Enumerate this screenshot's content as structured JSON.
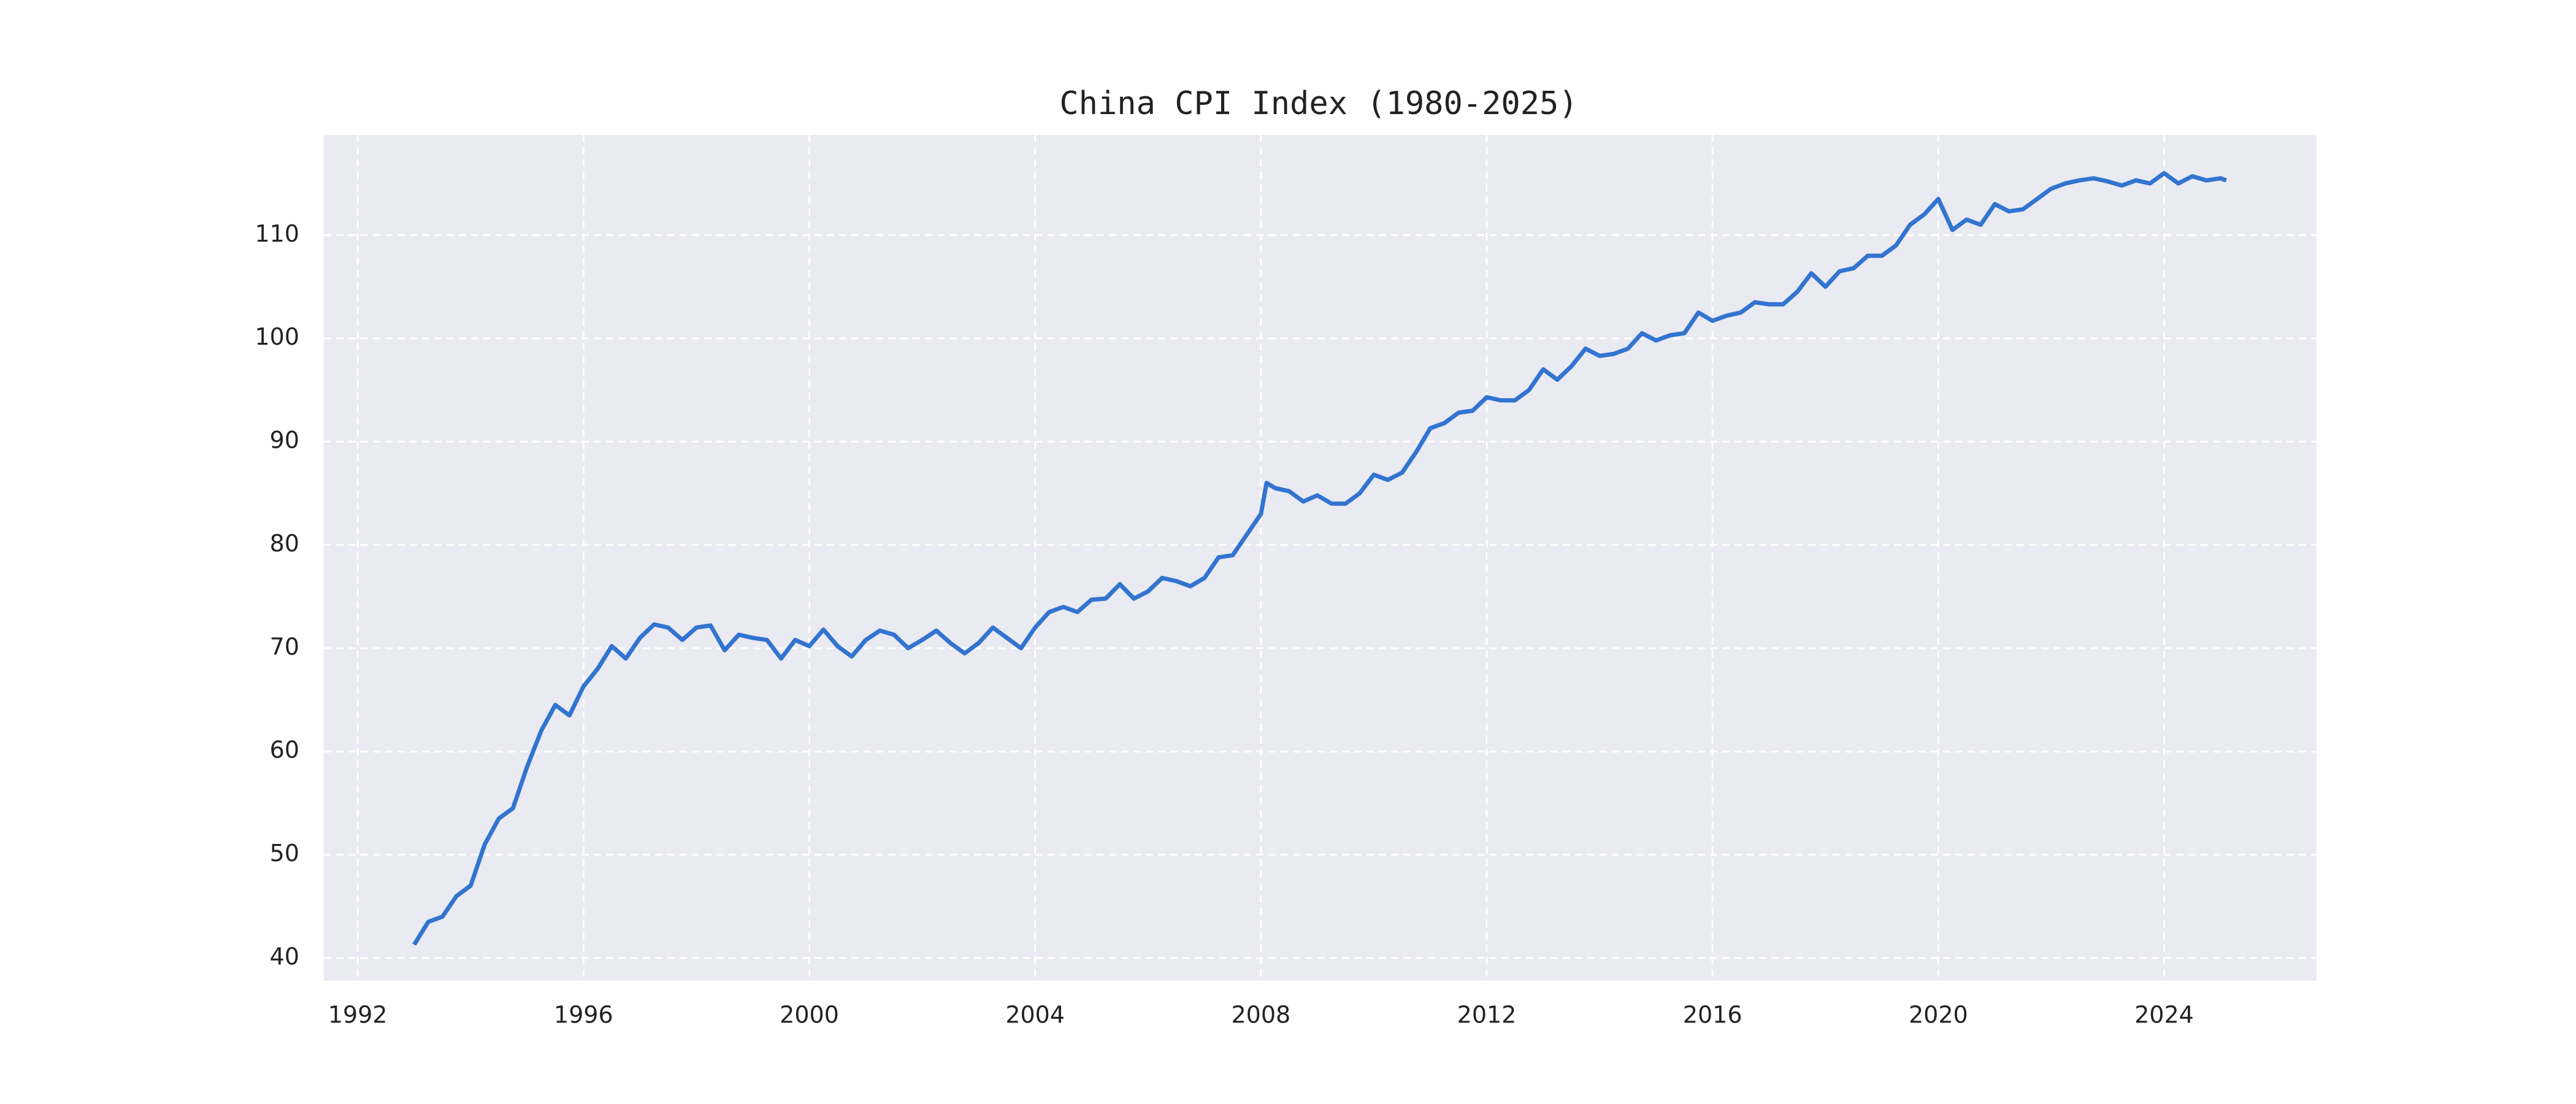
{
  "chart_data": {
    "type": "line",
    "title": "China CPI Index (1980-2025)",
    "x": [
      1993,
      1993.25,
      1993.5,
      1993.75,
      1994,
      1994.25,
      1994.5,
      1994.75,
      1995,
      1995.25,
      1995.5,
      1995.75,
      1996,
      1996.25,
      1996.5,
      1996.75,
      1997,
      1997.25,
      1997.5,
      1997.75,
      1998,
      1998.25,
      1998.5,
      1998.75,
      1999,
      1999.25,
      1999.5,
      1999.75,
      2000,
      2000.25,
      2000.5,
      2000.75,
      2001,
      2001.25,
      2001.5,
      2001.75,
      2002,
      2002.25,
      2002.5,
      2002.75,
      2003,
      2003.25,
      2003.5,
      2003.75,
      2004,
      2004.25,
      2004.5,
      2004.75,
      2005,
      2005.25,
      2005.5,
      2005.75,
      2006,
      2006.25,
      2006.5,
      2006.75,
      2007,
      2007.25,
      2007.5,
      2007.75,
      2008,
      2008.1,
      2008.25,
      2008.5,
      2008.75,
      2009,
      2009.25,
      2009.5,
      2009.75,
      2010,
      2010.25,
      2010.5,
      2010.75,
      2011,
      2011.25,
      2011.5,
      2011.75,
      2012,
      2012.25,
      2012.5,
      2012.75,
      2013,
      2013.25,
      2013.5,
      2013.75,
      2014,
      2014.25,
      2014.5,
      2014.75,
      2015,
      2015.25,
      2015.5,
      2015.75,
      2016,
      2016.25,
      2016.5,
      2016.75,
      2017,
      2017.25,
      2017.5,
      2017.75,
      2018,
      2018.25,
      2018.5,
      2018.75,
      2019,
      2019.25,
      2019.5,
      2019.75,
      2020,
      2020.25,
      2020.5,
      2020.75,
      2021,
      2021.25,
      2021.5,
      2021.75,
      2022,
      2022.25,
      2022.5,
      2022.75,
      2023,
      2023.25,
      2023.5,
      2023.75,
      2024,
      2024.25,
      2024.5,
      2024.75,
      2025,
      2025.1
    ],
    "values": [
      41.3,
      43.5,
      44,
      46,
      47,
      51,
      53.5,
      54.5,
      58.5,
      62,
      64.5,
      63.5,
      66.3,
      68,
      70.2,
      69,
      71,
      72.3,
      72,
      70.8,
      72,
      72.2,
      69.8,
      71.3,
      71,
      70.8,
      69,
      70.8,
      70.2,
      71.8,
      70.2,
      69.2,
      70.8,
      71.7,
      71.3,
      70,
      70.8,
      71.7,
      70.5,
      69.5,
      70.5,
      72,
      71,
      70,
      72,
      73.5,
      74,
      73.5,
      74.7,
      74.8,
      76.2,
      74.8,
      75.5,
      76.8,
      76.5,
      76,
      76.8,
      78.8,
      79,
      81,
      83,
      86,
      85.5,
      85.2,
      84.2,
      84.8,
      84,
      84,
      85,
      86.8,
      86.3,
      87,
      89,
      91.3,
      91.8,
      92.8,
      93,
      94.3,
      94,
      94,
      95,
      97,
      96,
      97.3,
      99,
      98.3,
      98.5,
      99,
      100.5,
      99.8,
      100.3,
      100.5,
      102.5,
      101.7,
      102.2,
      102.5,
      103.5,
      103.3,
      103.3,
      104.5,
      106.3,
      105,
      106.5,
      106.8,
      108,
      108,
      109,
      111,
      112,
      113.5,
      110.5,
      111.5,
      111,
      113,
      112.3,
      112.5,
      113.5,
      114.5,
      115,
      115.3,
      115.5,
      115.2,
      114.8,
      115.3,
      115,
      116,
      115,
      115.7,
      115.3,
      115.5,
      115.3
    ],
    "color": "#3274d0",
    "xlim": [
      1991.4,
      2026.7
    ],
    "xticks": [
      1992,
      1996,
      2000,
      2004,
      2008,
      2012,
      2016,
      2020,
      2024
    ],
    "ylim": [
      37.8,
      119.7
    ],
    "yticks": [
      40,
      50,
      60,
      70,
      80,
      90,
      100,
      110
    ],
    "grid": true
  }
}
